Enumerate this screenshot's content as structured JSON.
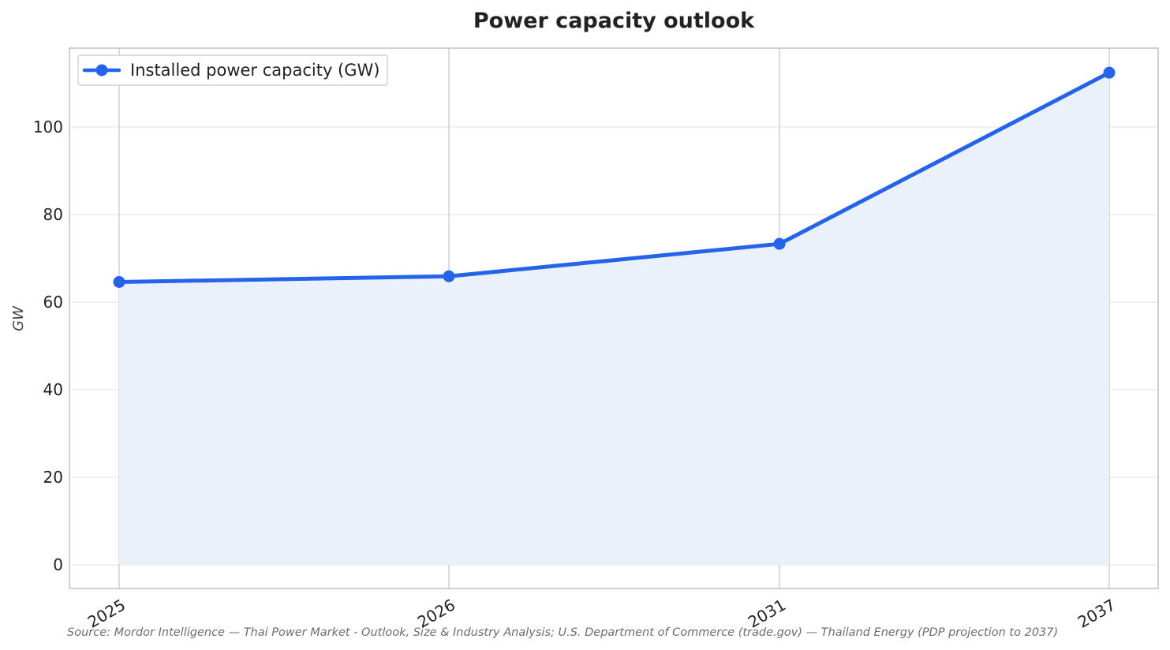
{
  "colors": {
    "series": "#2563eb",
    "fill": "#eaf0fb",
    "grid": "#e6e6ea",
    "vgrid": "#c8c8d0",
    "frame": "#c4c4c8",
    "text": "#222222"
  },
  "chart_data": {
    "type": "line",
    "title": "Power capacity outlook",
    "xlabel": "",
    "ylabel": "GW",
    "categories": [
      "2025",
      "2026",
      "2031",
      "2037"
    ],
    "series": [
      {
        "name": "Installed power capacity (GW)",
        "values": [
          64.6,
          65.9,
          73.3,
          112.4
        ]
      }
    ],
    "area_fill": true,
    "ylim": [
      -5.5,
      118
    ],
    "yticks": [
      0,
      20,
      40,
      60,
      80,
      100
    ],
    "grid": true,
    "legend": "top-left",
    "source": "Source: Mordor Intelligence — Thai Power Market - Outlook, Size & Industry Analysis; U.S. Department of Commerce (trade.gov) — Thailand Energy (PDP projection to 2037)"
  }
}
